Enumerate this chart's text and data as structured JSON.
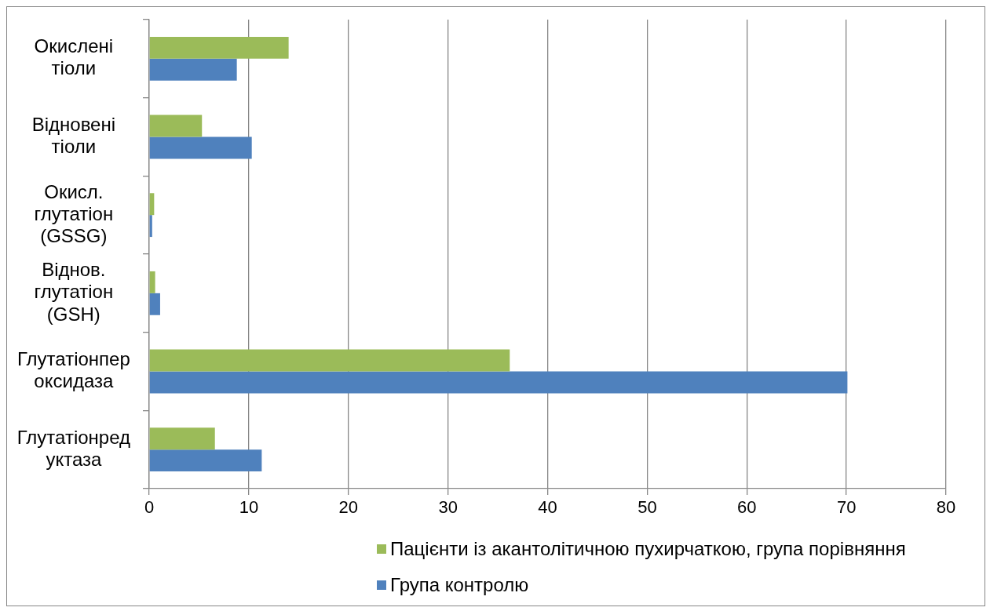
{
  "chart_data": {
    "type": "bar",
    "orientation": "horizontal",
    "categories": [
      "Окислені\nтіоли",
      "Відновені\nтіоли",
      "Окисл.\nглутатіон\n(GSSG)",
      "Віднов.\nглутатіон\n(GSH)",
      "Глутатіонпер\nоксидаза",
      "Глутатіонред\nуктаза"
    ],
    "series": [
      {
        "name": "Пацієнти із акантолітичною пухирчаткою, група порівняння",
        "color": "#9bbb59",
        "values": [
          14.0,
          5.3,
          0.5,
          0.6,
          36.2,
          6.6
        ]
      },
      {
        "name": "Група контролю",
        "color": "#4f81bd",
        "values": [
          8.8,
          10.3,
          0.3,
          1.1,
          70.1,
          11.3
        ]
      }
    ],
    "xlim": [
      0,
      80
    ],
    "xticks": [
      0,
      10,
      20,
      30,
      40,
      50,
      60,
      70,
      80
    ],
    "grid": "x",
    "legend": "bottom"
  }
}
